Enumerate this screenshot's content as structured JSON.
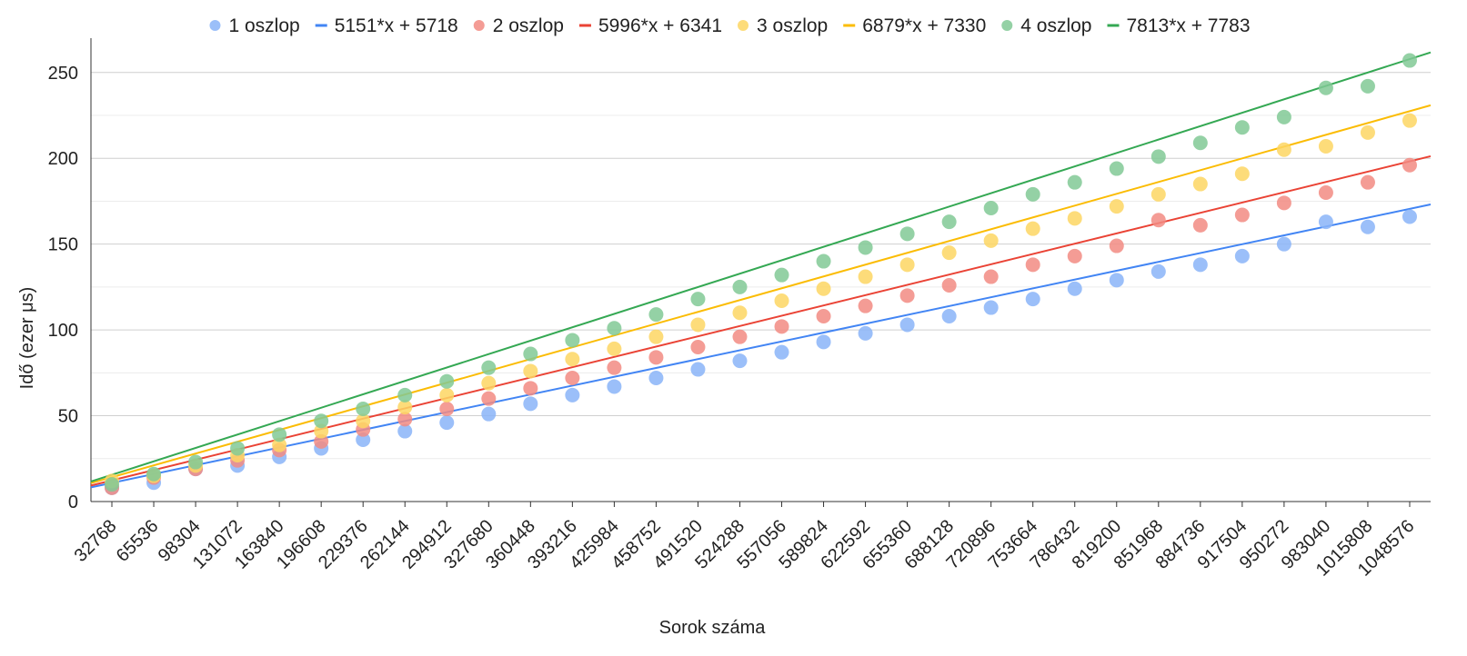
{
  "chart_data": {
    "type": "scatter",
    "xlabel": "Sorok száma",
    "ylabel": "Idő (ezer μs)",
    "categories": [
      "32768",
      "65536",
      "98304",
      "131072",
      "163840",
      "196608",
      "229376",
      "262144",
      "294912",
      "327680",
      "360448",
      "393216",
      "425984",
      "458752",
      "491520",
      "524288",
      "557056",
      "589824",
      "622592",
      "655360",
      "688128",
      "720896",
      "753664",
      "786432",
      "819200",
      "851968",
      "884736",
      "917504",
      "950272",
      "983040",
      "1015808",
      "1048576"
    ],
    "ylim": [
      0,
      270
    ],
    "y_ticks": [
      0,
      50,
      100,
      150,
      200,
      250
    ],
    "grid": "horizontal",
    "legend_position": "top",
    "series": [
      {
        "name": "1 oszlop",
        "color": "#8ab4f8",
        "values": [
          8,
          11,
          19,
          21,
          26,
          31,
          36,
          41,
          46,
          51,
          57,
          62,
          67,
          72,
          77,
          82,
          87,
          93,
          98,
          103,
          108,
          113,
          118,
          124,
          129,
          134,
          138,
          143,
          150,
          163,
          160,
          166
        ]
      },
      {
        "name": "2 oszlop",
        "color": "#f28b82",
        "values": [
          8,
          14,
          19,
          24,
          30,
          35,
          42,
          48,
          54,
          60,
          66,
          72,
          78,
          84,
          90,
          96,
          102,
          108,
          114,
          120,
          126,
          131,
          138,
          143,
          149,
          164,
          161,
          167,
          174,
          180,
          186,
          196
        ]
      },
      {
        "name": "3 oszlop",
        "color": "#fdd663",
        "values": [
          12,
          15,
          21,
          27,
          33,
          41,
          47,
          55,
          62,
          69,
          76,
          83,
          89,
          96,
          103,
          110,
          117,
          124,
          131,
          138,
          145,
          152,
          159,
          165,
          172,
          179,
          185,
          191,
          205,
          207,
          215,
          222
        ]
      },
      {
        "name": "4 oszlop",
        "color": "#81c995",
        "values": [
          10,
          16,
          23,
          31,
          39,
          47,
          54,
          62,
          70,
          78,
          86,
          94,
          101,
          109,
          118,
          125,
          132,
          140,
          148,
          156,
          163,
          171,
          179,
          186,
          194,
          201,
          209,
          218,
          224,
          241,
          242,
          257
        ]
      }
    ],
    "trendlines": [
      {
        "name": "5151*x + 5718",
        "color": "#4285f4",
        "slope": 5.151,
        "intercept": 5.718
      },
      {
        "name": "5996*x + 6341",
        "color": "#ea4335",
        "slope": 5.996,
        "intercept": 6.341
      },
      {
        "name": "6879*x + 7330",
        "color": "#fbbc04",
        "slope": 6.879,
        "intercept": 7.33
      },
      {
        "name": "7813*x + 7783",
        "color": "#34a853",
        "slope": 7.813,
        "intercept": 7.783
      }
    ],
    "legend_order": [
      {
        "kind": "marker",
        "ref": "series",
        "index": 0
      },
      {
        "kind": "line",
        "ref": "trendlines",
        "index": 0
      },
      {
        "kind": "marker",
        "ref": "series",
        "index": 1
      },
      {
        "kind": "line",
        "ref": "trendlines",
        "index": 1
      },
      {
        "kind": "marker",
        "ref": "series",
        "index": 2
      },
      {
        "kind": "line",
        "ref": "trendlines",
        "index": 2
      },
      {
        "kind": "marker",
        "ref": "series",
        "index": 3
      },
      {
        "kind": "line",
        "ref": "trendlines",
        "index": 3
      }
    ]
  }
}
